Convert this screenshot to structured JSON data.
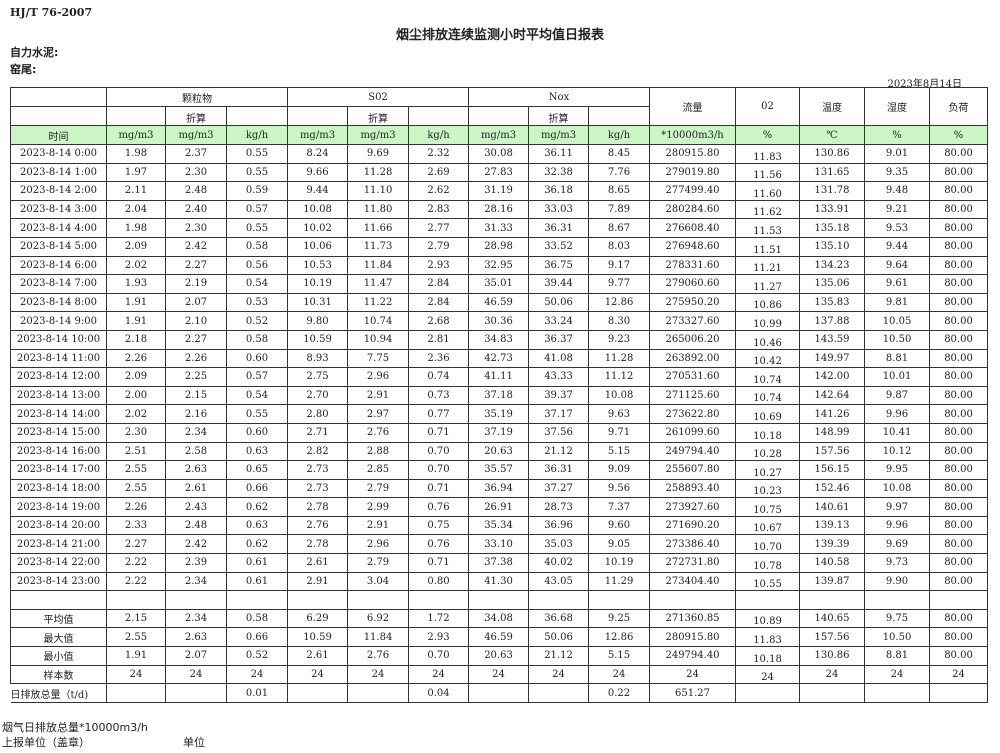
{
  "standard": "HJ/T  76-2007",
  "title": "烟尘排放连续监测小时平均值日报表",
  "company": "自力水泥:",
  "kiln": "窑尾:",
  "report_date": "2023年8月14日",
  "header": {
    "particulate": "颗粒物",
    "so2": "S02",
    "nox": "Nox",
    "converted": "折算",
    "flow": "流量",
    "o2": "02",
    "temperature": "温度",
    "humidity": "湿度",
    "load": "负荷"
  },
  "units": [
    "时间",
    "mg/m3",
    "mg/m3",
    "kg/h",
    "mg/m3",
    "mg/m3",
    "kg/h",
    "mg/m3",
    "mg/m3",
    "kg/h",
    "*10000m3/h",
    "%",
    "℃",
    "%",
    "%"
  ],
  "rows": [
    [
      "2023-8-14 0:00",
      "1.98",
      "2.37",
      "0.55",
      "8.24",
      "9.69",
      "2.32",
      "30.08",
      "36.11",
      "8.45",
      "280915.80",
      "11.83",
      "130.86",
      "9.01",
      "80.00"
    ],
    [
      "2023-8-14 1:00",
      "1.97",
      "2.30",
      "0.55",
      "9.66",
      "11.28",
      "2.69",
      "27.83",
      "32.38",
      "7.76",
      "279019.80",
      "11.56",
      "131.65",
      "9.35",
      "80.00"
    ],
    [
      "2023-8-14 2:00",
      "2.11",
      "2.48",
      "0.59",
      "9.44",
      "11.10",
      "2.62",
      "31.19",
      "36.18",
      "8.65",
      "277499.40",
      "11.60",
      "131.78",
      "9.48",
      "80.00"
    ],
    [
      "2023-8-14 3:00",
      "2.04",
      "2.40",
      "0.57",
      "10.08",
      "11.80",
      "2.83",
      "28.16",
      "33.03",
      "7.89",
      "280284.60",
      "11.62",
      "133.91",
      "9.21",
      "80.00"
    ],
    [
      "2023-8-14 4:00",
      "1.98",
      "2.30",
      "0.55",
      "10.02",
      "11.66",
      "2.77",
      "31.33",
      "36.31",
      "8.67",
      "276608.40",
      "11.53",
      "135.18",
      "9.53",
      "80.00"
    ],
    [
      "2023-8-14 5:00",
      "2.09",
      "2.42",
      "0.58",
      "10.06",
      "11.73",
      "2.79",
      "28.98",
      "33.52",
      "8.03",
      "276948.60",
      "11.51",
      "135.10",
      "9.44",
      "80.00"
    ],
    [
      "2023-8-14 6:00",
      "2.02",
      "2.27",
      "0.56",
      "10.53",
      "11.84",
      "2.93",
      "32.95",
      "36.75",
      "9.17",
      "278331.60",
      "11.21",
      "134.23",
      "9.64",
      "80.00"
    ],
    [
      "2023-8-14 7:00",
      "1.93",
      "2.19",
      "0.54",
      "10.19",
      "11.47",
      "2.84",
      "35.01",
      "39.44",
      "9.77",
      "279060.60",
      "11.27",
      "135.06",
      "9.61",
      "80.00"
    ],
    [
      "2023-8-14 8:00",
      "1.91",
      "2.07",
      "0.53",
      "10.31",
      "11.22",
      "2.84",
      "46.59",
      "50.06",
      "12.86",
      "275950.20",
      "10.86",
      "135.83",
      "9.81",
      "80.00"
    ],
    [
      "2023-8-14 9:00",
      "1.91",
      "2.10",
      "0.52",
      "9.80",
      "10.74",
      "2.68",
      "30.36",
      "33.24",
      "8.30",
      "273327.60",
      "10.99",
      "137.88",
      "10.05",
      "80.00"
    ],
    [
      "2023-8-14 10:00",
      "2.18",
      "2.27",
      "0.58",
      "10.59",
      "10.94",
      "2.81",
      "34.83",
      "36.37",
      "9.23",
      "265006.20",
      "10.46",
      "143.59",
      "10.50",
      "80.00"
    ],
    [
      "2023-8-14 11:00",
      "2.26",
      "2.26",
      "0.60",
      "8.93",
      "7.75",
      "2.36",
      "42.73",
      "41.08",
      "11.28",
      "263892.00",
      "10.42",
      "149.97",
      "8.81",
      "80.00"
    ],
    [
      "2023-8-14 12:00",
      "2.09",
      "2.25",
      "0.57",
      "2.75",
      "2.96",
      "0.74",
      "41.11",
      "43.33",
      "11.12",
      "270531.60",
      "10.74",
      "142.00",
      "10.01",
      "80.00"
    ],
    [
      "2023-8-14 13:00",
      "2.00",
      "2.15",
      "0.54",
      "2.70",
      "2.91",
      "0.73",
      "37.18",
      "39.37",
      "10.08",
      "271125.60",
      "10.74",
      "142.64",
      "9.87",
      "80.00"
    ],
    [
      "2023-8-14 14:00",
      "2.02",
      "2.16",
      "0.55",
      "2.80",
      "2.97",
      "0.77",
      "35.19",
      "37.17",
      "9.63",
      "273622.80",
      "10.69",
      "141.26",
      "9.96",
      "80.00"
    ],
    [
      "2023-8-14 15:00",
      "2.30",
      "2.34",
      "0.60",
      "2.71",
      "2.76",
      "0.71",
      "37.19",
      "37.56",
      "9.71",
      "261099.60",
      "10.18",
      "148.99",
      "10.41",
      "80.00"
    ],
    [
      "2023-8-14 16:00",
      "2.51",
      "2.58",
      "0.63",
      "2.82",
      "2.88",
      "0.70",
      "20.63",
      "21.12",
      "5.15",
      "249794.40",
      "10.28",
      "157.56",
      "10.12",
      "80.00"
    ],
    [
      "2023-8-14 17:00",
      "2.55",
      "2.63",
      "0.65",
      "2.73",
      "2.85",
      "0.70",
      "35.57",
      "36.31",
      "9.09",
      "255607.80",
      "10.27",
      "156.15",
      "9.95",
      "80.00"
    ],
    [
      "2023-8-14 18:00",
      "2.55",
      "2.61",
      "0.66",
      "2.73",
      "2.79",
      "0.71",
      "36.94",
      "37.27",
      "9.56",
      "258893.40",
      "10.23",
      "152.46",
      "10.08",
      "80.00"
    ],
    [
      "2023-8-14 19:00",
      "2.26",
      "2.43",
      "0.62",
      "2.78",
      "2.99",
      "0.76",
      "26.91",
      "28.73",
      "7.37",
      "273927.60",
      "10.75",
      "140.61",
      "9.97",
      "80.00"
    ],
    [
      "2023-8-14 20:00",
      "2.33",
      "2.48",
      "0.63",
      "2.76",
      "2.91",
      "0.75",
      "35.34",
      "36.96",
      "9.60",
      "271690.20",
      "10.67",
      "139.13",
      "9.96",
      "80.00"
    ],
    [
      "2023-8-14 21:00",
      "2.27",
      "2.42",
      "0.62",
      "2.78",
      "2.96",
      "0.76",
      "33.10",
      "35.03",
      "9.05",
      "273386.40",
      "10.70",
      "139.39",
      "9.69",
      "80.00"
    ],
    [
      "2023-8-14 22:00",
      "2.22",
      "2.39",
      "0.61",
      "2.61",
      "2.79",
      "0.71",
      "37.38",
      "40.02",
      "10.19",
      "272731.80",
      "10.78",
      "140.58",
      "9.73",
      "80.00"
    ],
    [
      "2023-8-14 23:00",
      "2.22",
      "2.34",
      "0.61",
      "2.91",
      "3.04",
      "0.80",
      "41.30",
      "43.05",
      "11.29",
      "273404.40",
      "10.55",
      "139.87",
      "9.90",
      "80.00"
    ]
  ],
  "summary": [
    [
      "平均值",
      "2.15",
      "2.34",
      "0.58",
      "6.29",
      "6.92",
      "1.72",
      "34.08",
      "36.68",
      "9.25",
      "271360.85",
      "10.89",
      "140.65",
      "9.75",
      "80.00"
    ],
    [
      "最大值",
      "2.55",
      "2.63",
      "0.66",
      "10.59",
      "11.84",
      "2.93",
      "46.59",
      "50.06",
      "12.86",
      "280915.80",
      "11.83",
      "157.56",
      "10.50",
      "80.00"
    ],
    [
      "最小值",
      "1.91",
      "2.07",
      "0.52",
      "2.61",
      "2.76",
      "0.70",
      "20.63",
      "21.12",
      "5.15",
      "249794.40",
      "10.18",
      "130.86",
      "8.81",
      "80.00"
    ],
    [
      "样本数",
      "24",
      "24",
      "24",
      "24",
      "24",
      "24",
      "24",
      "24",
      "24",
      "24",
      "24",
      "24",
      "24",
      "24"
    ]
  ],
  "daily_total": [
    "日排放总量（t/d)",
    "",
    "",
    "0.01",
    "",
    "",
    "0.04",
    "",
    "",
    "0.22",
    "651.27",
    "",
    "",
    "",
    ""
  ],
  "footer": {
    "flue_gas_total": "烟气日排放总量*10000m3/h",
    "reporting_unit": "上报单位（盖章）",
    "unit": "单位"
  }
}
